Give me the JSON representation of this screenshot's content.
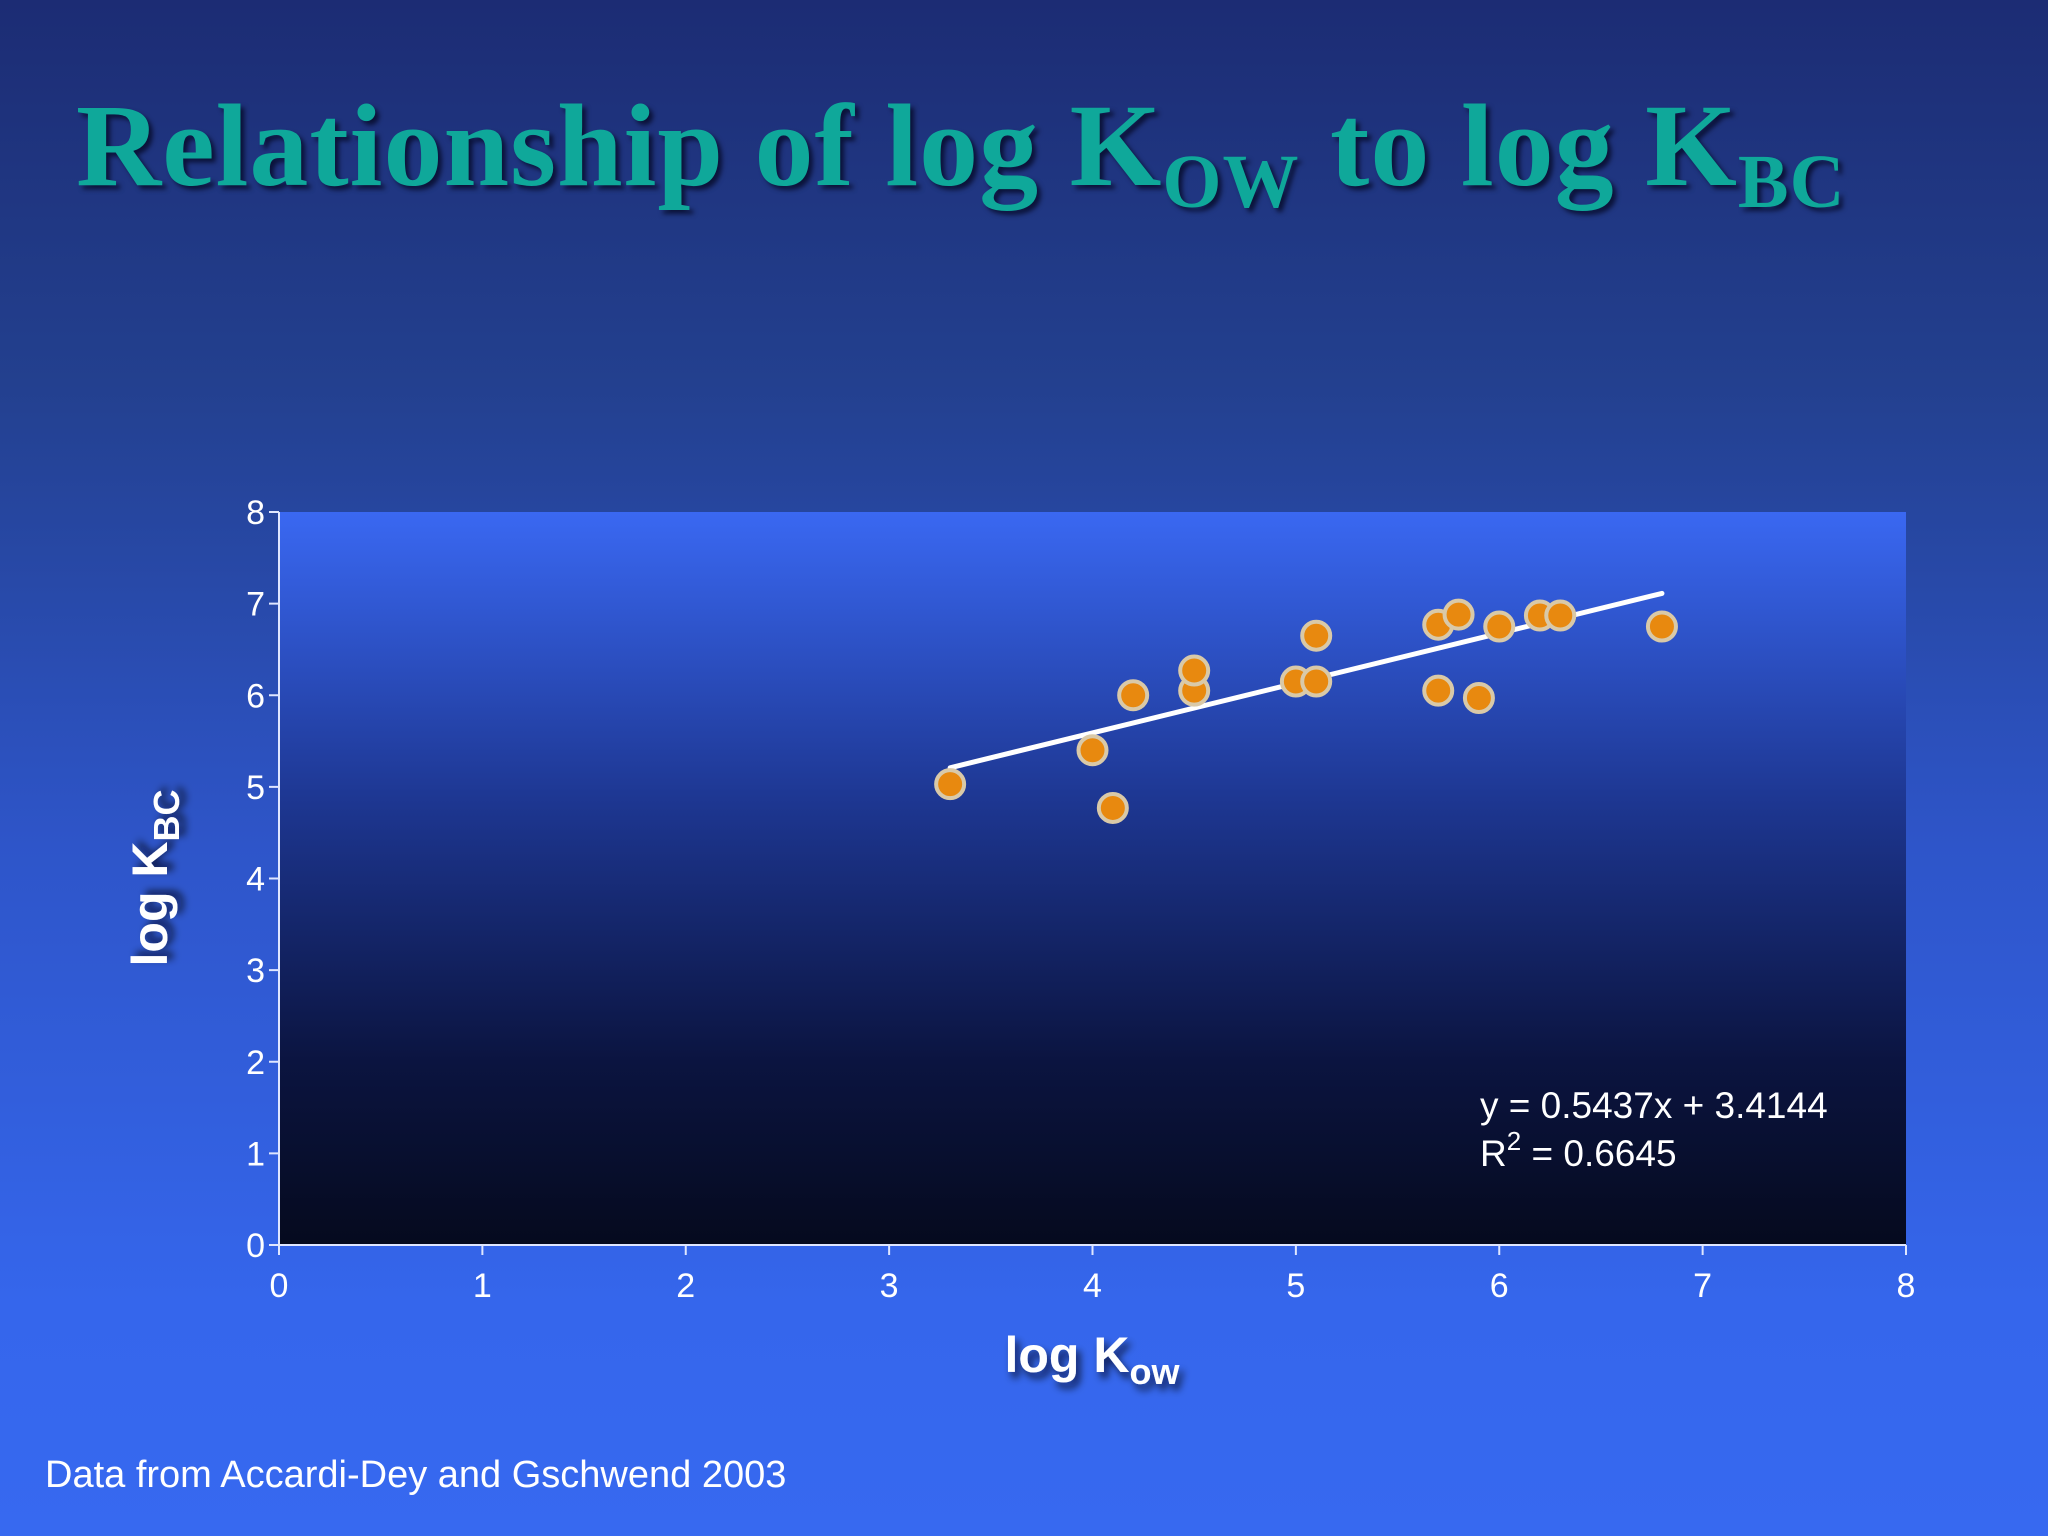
{
  "slide": {
    "title_parts": [
      "Relationship of log K",
      "OW",
      " to log K",
      "BC"
    ],
    "source_note": "Data from Accardi-Dey and Gschwend 2003"
  },
  "chart_data": {
    "type": "scatter",
    "title": "",
    "xlabel_parts": [
      "log K",
      "ow"
    ],
    "ylabel_parts": [
      "log K",
      "BC"
    ],
    "xlim": [
      0,
      8
    ],
    "ylim": [
      0,
      8
    ],
    "x_ticks": [
      0,
      1,
      2,
      3,
      4,
      5,
      6,
      7,
      8
    ],
    "y_ticks": [
      0,
      1,
      2,
      3,
      4,
      5,
      6,
      7,
      8
    ],
    "grid": false,
    "legend": "none",
    "colors": {
      "marker_fill": "#e8890f",
      "marker_stroke": "#d9c9a8",
      "trendline": "#ffffff",
      "plot_top": "#3a68f2",
      "plot_bottom": "#050a1e"
    },
    "series": [
      {
        "points": [
          {
            "x": 3.3,
            "y": 5.03
          },
          {
            "x": 4.0,
            "y": 5.4
          },
          {
            "x": 4.1,
            "y": 4.77
          },
          {
            "x": 4.2,
            "y": 6.0
          },
          {
            "x": 4.5,
            "y": 6.05
          },
          {
            "x": 4.5,
            "y": 6.27
          },
          {
            "x": 5.0,
            "y": 6.15
          },
          {
            "x": 5.1,
            "y": 6.15
          },
          {
            "x": 5.1,
            "y": 6.65
          },
          {
            "x": 5.7,
            "y": 6.05
          },
          {
            "x": 5.7,
            "y": 6.77
          },
          {
            "x": 5.8,
            "y": 6.88
          },
          {
            "x": 5.9,
            "y": 5.97
          },
          {
            "x": 6.0,
            "y": 6.75
          },
          {
            "x": 6.2,
            "y": 6.87
          },
          {
            "x": 6.3,
            "y": 6.87
          },
          {
            "x": 6.8,
            "y": 6.75
          }
        ]
      }
    ],
    "trendline": {
      "slope": 0.5437,
      "intercept": 3.4144,
      "x_range": [
        3.3,
        6.8
      ],
      "equation_label": "y = 0.5437x + 3.4144",
      "r2_label_parts": [
        "R",
        "2",
        " = 0.6645"
      ]
    }
  }
}
